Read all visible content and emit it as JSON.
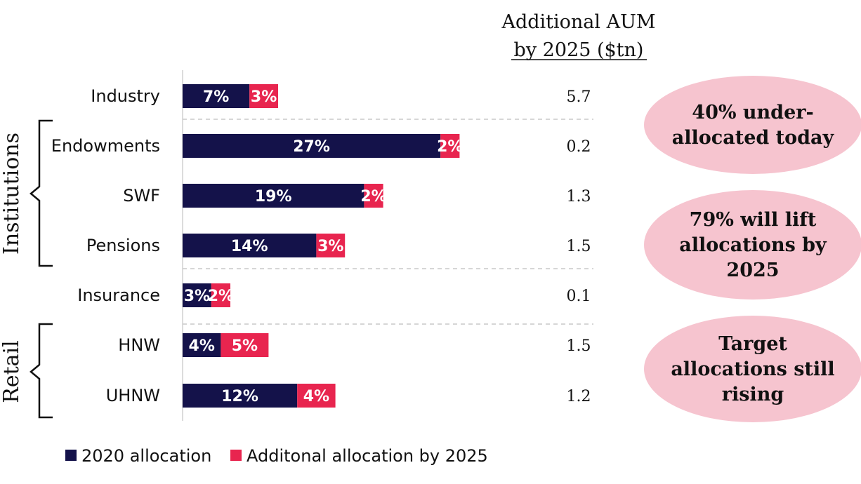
{
  "colors": {
    "series_2020": "#14124a",
    "series_additional": "#e8254f",
    "callout_fill": "#f6c4cf",
    "divider": "#c8c8c8"
  },
  "header": {
    "line1": "Additional AUM",
    "line2": "by 2025 ($tn)"
  },
  "groups": [
    {
      "label": "Institutions",
      "rows": [
        1,
        3
      ]
    },
    {
      "label": "Retail",
      "rows": [
        5,
        6
      ]
    }
  ],
  "callouts": [
    {
      "lines": [
        "40% under-",
        "allocated today"
      ]
    },
    {
      "lines": [
        "79% will lift",
        "allocations by",
        "2025"
      ]
    },
    {
      "lines": [
        "Target",
        "allocations still",
        "rising"
      ]
    }
  ],
  "chart_data": {
    "type": "bar",
    "orientation": "horizontal",
    "stacked": true,
    "categories": [
      "Industry",
      "Endowments",
      "SWF",
      "Pensions",
      "Insurance",
      "HNW",
      "UHNW"
    ],
    "series": [
      {
        "name": "2020 allocation",
        "values": [
          7,
          27,
          19,
          14,
          3,
          4,
          12
        ],
        "labels": [
          "7%",
          "27%",
          "19%",
          "14%",
          "3%",
          "4%",
          "12%"
        ]
      },
      {
        "name": "Additonal allocation by 2025",
        "values": [
          3,
          2,
          2,
          3,
          2,
          5,
          4
        ],
        "labels": [
          "3%",
          "2%",
          "2%",
          "3%",
          "2%",
          "5%",
          "4%"
        ]
      }
    ],
    "additional_aum": [
      "5.7",
      "0.2",
      "1.3",
      "1.5",
      "0.1",
      "1.5",
      "1.2"
    ],
    "xlim": [
      0,
      40
    ],
    "legend": "bottom-left"
  }
}
